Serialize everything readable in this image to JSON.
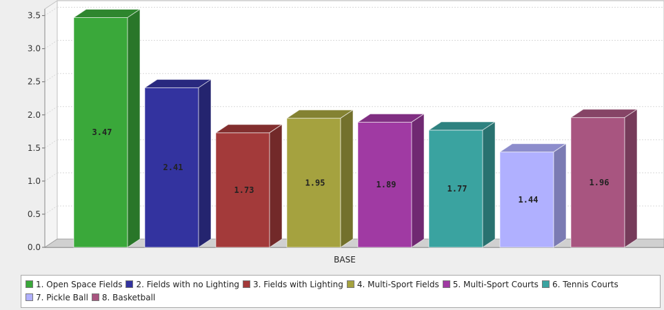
{
  "chart_data": {
    "type": "bar",
    "categories": [
      "BASE"
    ],
    "xlabel": "BASE",
    "ylim": [
      0,
      3.6
    ],
    "yticks": [
      "0.0",
      "0.5",
      "1.0",
      "1.5",
      "2.0",
      "2.5",
      "3.0",
      "3.5"
    ],
    "grid": true,
    "legend_position": "bottom",
    "series": [
      {
        "name": "1. Open Space Fields",
        "value": 3.47,
        "label": "3.47",
        "color": "#3aa83a"
      },
      {
        "name": "2. Fields with no Lighting",
        "value": 2.41,
        "label": "2.41",
        "color": "#33339f"
      },
      {
        "name": "3. Fields with Lighting",
        "value": 1.73,
        "label": "1.73",
        "color": "#a33a3a"
      },
      {
        "name": "4. Multi-Sport Fields",
        "value": 1.95,
        "label": "1.95",
        "color": "#a5a23f"
      },
      {
        "name": "5. Multi-Sport Courts",
        "value": 1.89,
        "label": "1.89",
        "color": "#a03aa3"
      },
      {
        "name": "6. Tennis Courts",
        "value": 1.77,
        "label": "1.77",
        "color": "#3aa3a0"
      },
      {
        "name": "7. Pickle Ball",
        "value": 1.44,
        "label": "1.44",
        "color": "#b0b0ff"
      },
      {
        "name": "8. Basketball",
        "value": 1.96,
        "label": "1.96",
        "color": "#a85580"
      }
    ]
  }
}
